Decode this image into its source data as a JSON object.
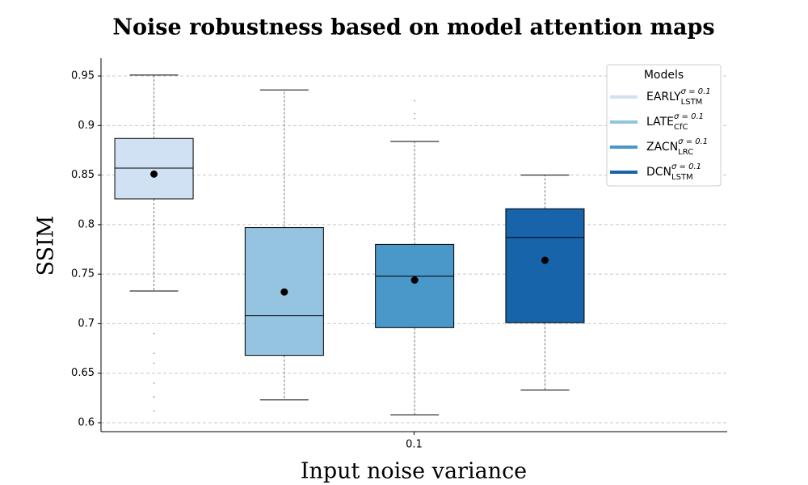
{
  "chart_data": {
    "type": "box",
    "title": "Noise robustness based on model attention maps",
    "xlabel": "Input noise variance",
    "ylabel": "SSIM",
    "categories": [
      "0.1"
    ],
    "ylim": [
      0.591,
      0.968
    ],
    "yticks": [
      0.6,
      0.65,
      0.7,
      0.75,
      0.8,
      0.85,
      0.9,
      0.95
    ],
    "grid": true,
    "legend_title": "Models",
    "legend_position": "upper right",
    "series": [
      {
        "name": "EARLY",
        "subscript": "LSTM",
        "superscript": "σ = 0.1",
        "color": "#cfe1f2",
        "whisker_low": 0.733,
        "q1": 0.826,
        "median": 0.857,
        "q3": 0.887,
        "whisker_high": 0.951,
        "mean": 0.851,
        "fliers": [
          0.69,
          0.67,
          0.66,
          0.64,
          0.626,
          0.612
        ]
      },
      {
        "name": "LATE",
        "subscript": "CfC",
        "superscript": "σ = 0.1",
        "color": "#94c4df",
        "whisker_low": 0.623,
        "q1": 0.668,
        "median": 0.708,
        "q3": 0.797,
        "whisker_high": 0.936,
        "mean": 0.732,
        "fliers": []
      },
      {
        "name": "ZACN",
        "subscript": "LRC",
        "superscript": "σ = 0.1",
        "color": "#4a98c9",
        "whisker_low": 0.608,
        "q1": 0.696,
        "median": 0.748,
        "q3": 0.78,
        "whisker_high": 0.884,
        "mean": 0.744,
        "fliers": [
          0.925,
          0.912,
          0.907
        ]
      },
      {
        "name": "DCN",
        "subscript": "LSTM",
        "superscript": "σ = 0.1",
        "color": "#1764ab",
        "whisker_low": 0.633,
        "q1": 0.701,
        "median": 0.787,
        "q3": 0.816,
        "whisker_high": 0.85,
        "mean": 0.764,
        "fliers": []
      }
    ]
  }
}
